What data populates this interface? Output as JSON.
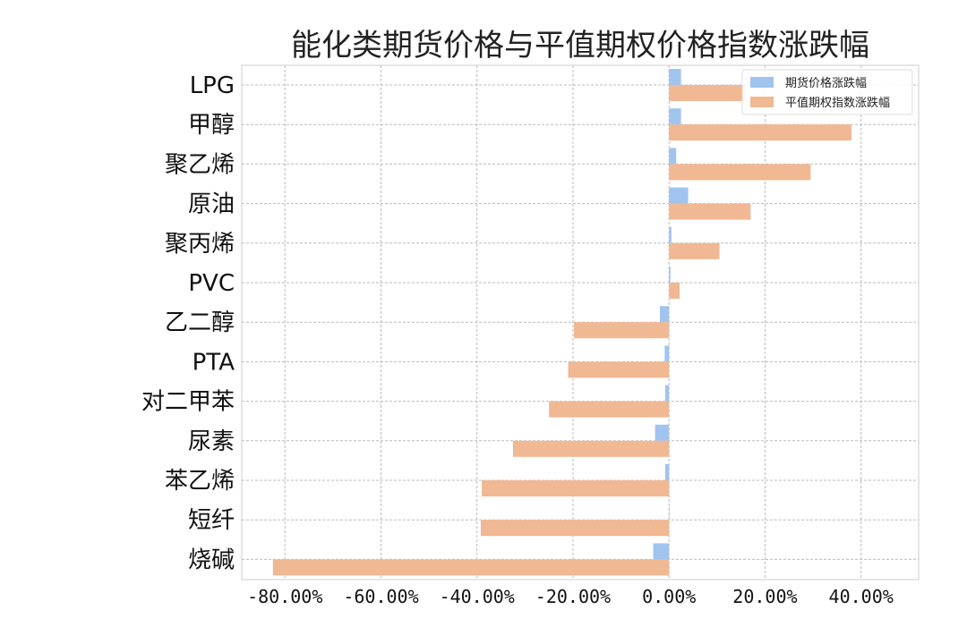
{
  "chart_data": {
    "type": "bar",
    "orientation": "horizontal",
    "title": "能化类期货价格与平值期权价格指数涨跌幅",
    "categories": [
      "LPG",
      "甲醇",
      "聚乙烯",
      "原油",
      "聚丙烯",
      "PVC",
      "乙二醇",
      "PTA",
      "对二甲苯",
      "尿素",
      "苯乙烯",
      "短纤",
      "烧碱"
    ],
    "series": [
      {
        "name": "期货价格涨跌幅",
        "color": "#a1c4ef",
        "values": [
          0.025,
          0.025,
          0.015,
          0.04,
          0.005,
          0.003,
          -0.019,
          -0.009,
          -0.008,
          -0.029,
          -0.008,
          0.0,
          -0.033
        ]
      },
      {
        "name": "平值期权指数涨跌幅",
        "color": "#f0b893",
        "values": [
          0.16,
          0.38,
          0.295,
          0.17,
          0.105,
          0.022,
          -0.198,
          -0.21,
          -0.25,
          -0.325,
          -0.39,
          -0.392,
          -0.825
        ]
      }
    ],
    "xlim": [
      -0.89,
      0.52
    ],
    "xticks": [
      -0.8,
      -0.6,
      -0.4,
      -0.2,
      0.0,
      0.2,
      0.4
    ],
    "xtick_labels": [
      "-80.00%",
      "-60.00%",
      "-40.00%",
      "-20.00%",
      "0.00%",
      "20.00%",
      "40.00%"
    ],
    "grid": true,
    "legend_position": "top-right"
  }
}
